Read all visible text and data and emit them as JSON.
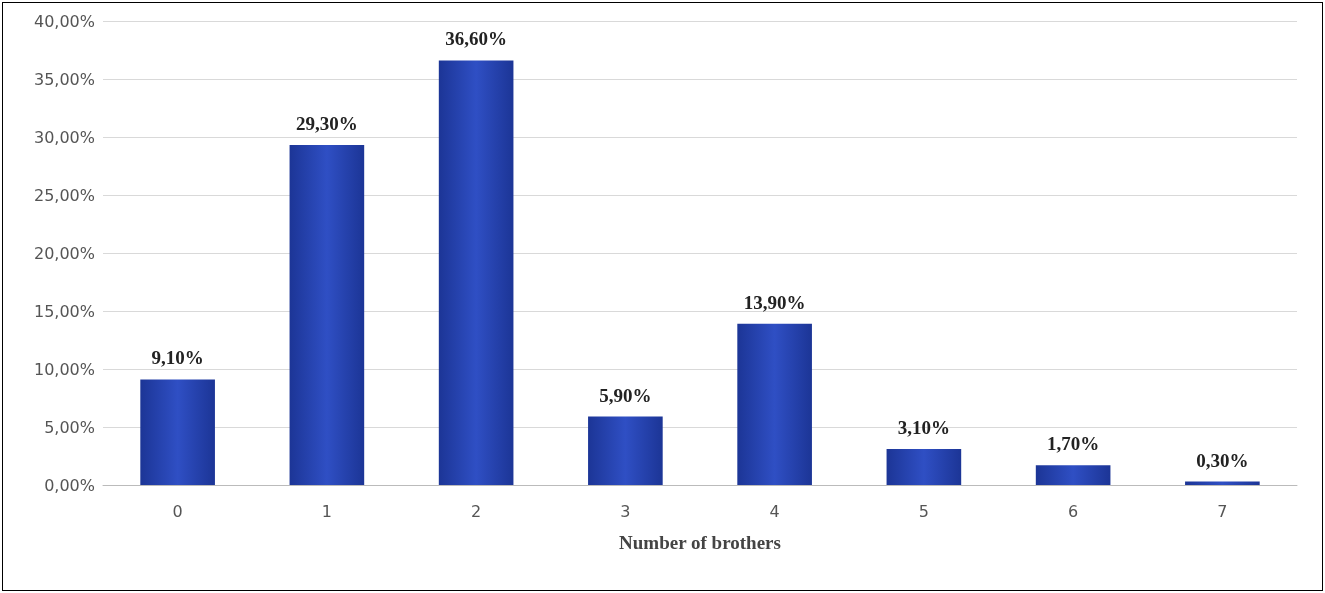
{
  "chart_data": {
    "type": "bar",
    "xlabel": "Number of brothers",
    "categories": [
      "0",
      "1",
      "2",
      "3",
      "4",
      "5",
      "6",
      "7"
    ],
    "values": [
      9.1,
      29.3,
      36.6,
      5.9,
      13.9,
      3.1,
      1.7,
      0.3
    ],
    "value_labels": [
      "9,10%",
      "29,30%",
      "36,60%",
      "5,90%",
      "13,90%",
      "3,10%",
      "1,70%",
      "0,30%"
    ],
    "color": "#2f4fc4",
    "ylim": [
      0,
      40
    ],
    "yticks": [
      {
        "value": 0,
        "label": "0,00%"
      },
      {
        "value": 5,
        "label": "5,00%"
      },
      {
        "value": 10,
        "label": "10,00%"
      },
      {
        "value": 15,
        "label": "15,00%"
      },
      {
        "value": 20,
        "label": "20,00%"
      },
      {
        "value": 25,
        "label": "25,00%"
      },
      {
        "value": 30,
        "label": "30,00%"
      },
      {
        "value": 35,
        "label": "35,00%"
      },
      {
        "value": 40,
        "label": "40,00%"
      }
    ],
    "grid": "y"
  }
}
